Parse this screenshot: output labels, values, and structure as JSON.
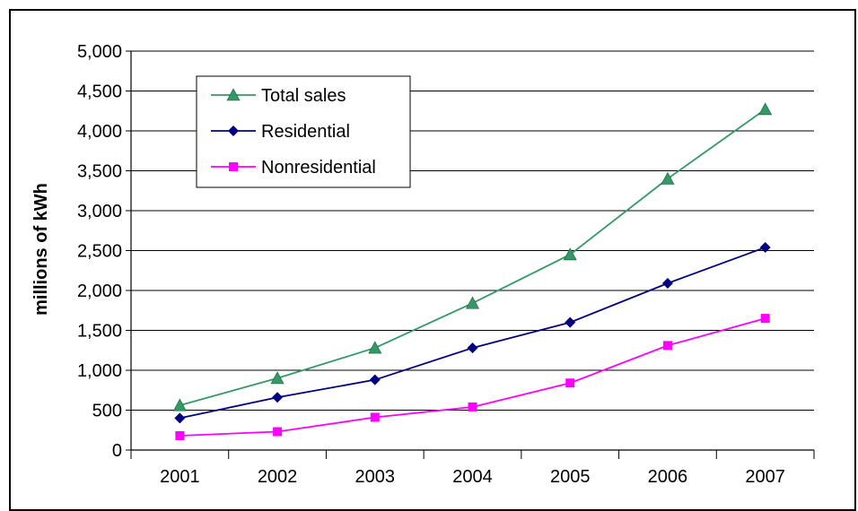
{
  "chart_data": {
    "type": "line",
    "title": "",
    "xlabel": "",
    "ylabel": "millions of kWh",
    "categories": [
      "2001",
      "2002",
      "2003",
      "2004",
      "2005",
      "2006",
      "2007"
    ],
    "ylim": [
      0,
      5000
    ],
    "yticks": [
      0,
      500,
      1000,
      1500,
      2000,
      2500,
      3000,
      3500,
      4000,
      4500,
      5000
    ],
    "ytick_labels": [
      "0",
      "500",
      "1,000",
      "1,500",
      "2,000",
      "2,500",
      "3,000",
      "3,500",
      "4,000",
      "4,500",
      "5,000"
    ],
    "grid": "horizontal",
    "legend_position": "top-left",
    "series": [
      {
        "name": "Total sales",
        "color": "#339966",
        "marker": "triangle",
        "values": [
          560,
          900,
          1280,
          1840,
          2450,
          3400,
          4270
        ]
      },
      {
        "name": "Residential",
        "color": "#000080",
        "marker": "diamond",
        "values": [
          400,
          660,
          880,
          1280,
          1600,
          2090,
          2540
        ]
      },
      {
        "name": "Nonresidential",
        "color": "#FF00FF",
        "marker": "square",
        "values": [
          180,
          230,
          410,
          540,
          840,
          1310,
          1650
        ]
      }
    ]
  }
}
